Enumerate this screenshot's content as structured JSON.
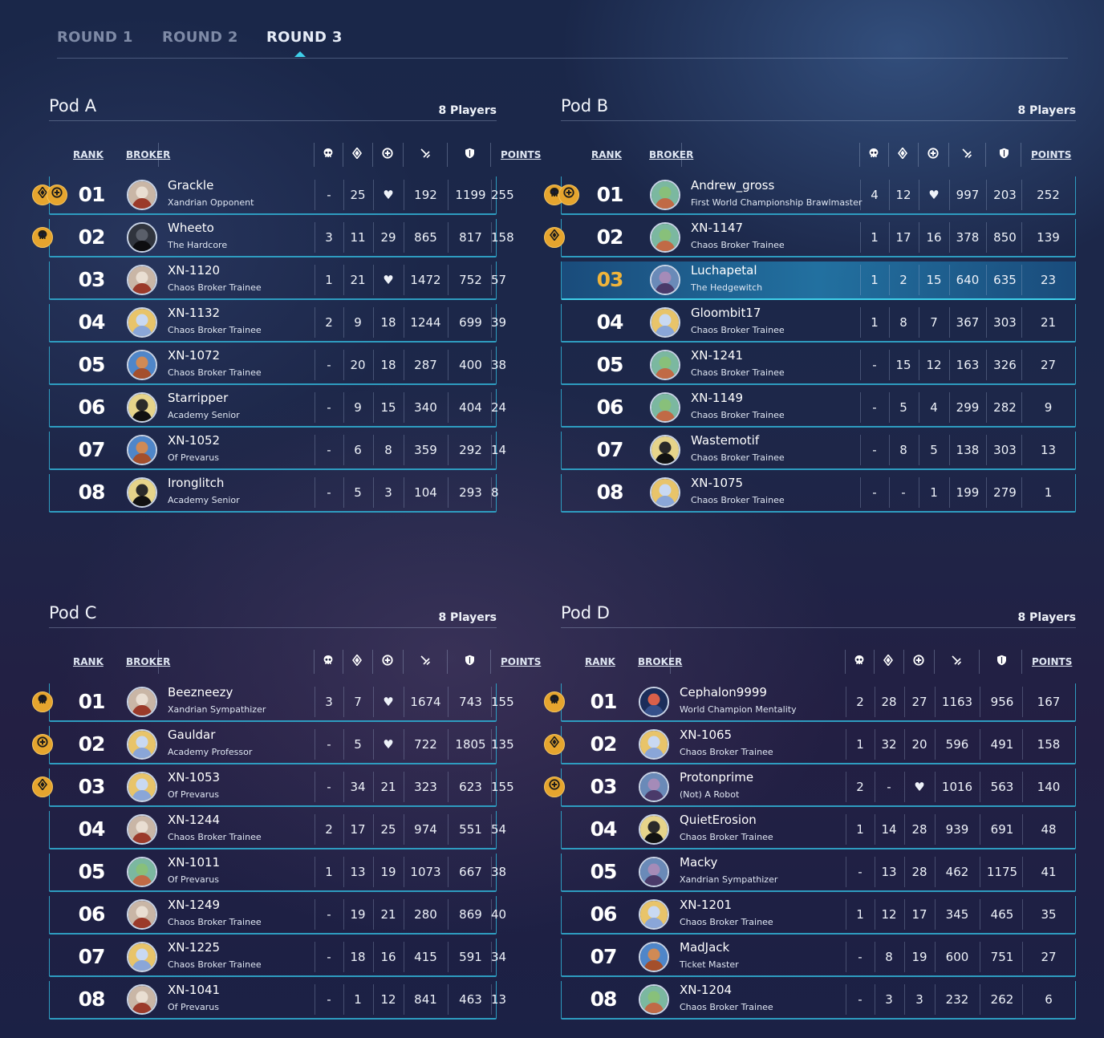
{
  "tabs": [
    "ROUND 1",
    "ROUND 2",
    "ROUND 3"
  ],
  "active_tab": "ROUND 3",
  "columns": {
    "rank": "RANK",
    "broker": "BROKER",
    "points": "POINTS",
    "stat_icons": [
      "skull-icon",
      "diamond-icon",
      "plus-circle-icon",
      "sword-icon",
      "shield-icon"
    ]
  },
  "colors": {
    "accent": "#3fd0ea",
    "row_border": "#2e9cc0",
    "badge": "#e6a52e",
    "highlight_rank": "#f0b43a"
  },
  "pods": [
    {
      "title": "Pod A",
      "count": "8 Players",
      "players": [
        {
          "rank": "01",
          "name": "Grackle",
          "title": "Xandrian Opponent",
          "badges": [
            "diamond-icon",
            "plus-circle-icon"
          ],
          "avatar": "red",
          "s1": "-",
          "s2": "25",
          "s3": "♥",
          "s4": "192",
          "s5": "1199",
          "points": "255"
        },
        {
          "rank": "02",
          "name": "Wheeto",
          "title": "The Hardcore",
          "badges": [
            "skull-icon"
          ],
          "avatar": "dark",
          "s1": "3",
          "s2": "11",
          "s3": "29",
          "s4": "865",
          "s5": "817",
          "points": "158"
        },
        {
          "rank": "03",
          "name": "XN-1120",
          "title": "Chaos Broker Trainee",
          "badges": [],
          "avatar": "red",
          "s1": "1",
          "s2": "21",
          "s3": "♥",
          "s4": "1472",
          "s5": "752",
          "points": "57"
        },
        {
          "rank": "04",
          "name": "XN-1132",
          "title": "Chaos Broker Trainee",
          "badges": [],
          "avatar": "blue",
          "s1": "2",
          "s2": "9",
          "s3": "18",
          "s4": "1244",
          "s5": "699",
          "points": "39"
        },
        {
          "rank": "05",
          "name": "XN-1072",
          "title": "Chaos Broker Trainee",
          "badges": [],
          "avatar": "brown",
          "s1": "-",
          "s2": "20",
          "s3": "18",
          "s4": "287",
          "s5": "400",
          "points": "38"
        },
        {
          "rank": "06",
          "name": "Starripper",
          "title": "Academy Senior",
          "badges": [],
          "avatar": "shadow",
          "s1": "-",
          "s2": "9",
          "s3": "15",
          "s4": "340",
          "s5": "404",
          "points": "24"
        },
        {
          "rank": "07",
          "name": "XN-1052",
          "title": "Of Prevarus",
          "badges": [],
          "avatar": "brown",
          "s1": "-",
          "s2": "6",
          "s3": "8",
          "s4": "359",
          "s5": "292",
          "points": "14"
        },
        {
          "rank": "08",
          "name": "Ironglitch",
          "title": "Academy Senior",
          "badges": [],
          "avatar": "shadow",
          "s1": "-",
          "s2": "5",
          "s3": "3",
          "s4": "104",
          "s5": "293",
          "points": "8"
        }
      ]
    },
    {
      "title": "Pod B",
      "count": "8 Players",
      "players": [
        {
          "rank": "01",
          "name": "Andrew_gross",
          "title": "First World Championship Brawlmaster",
          "badges": [
            "skull-icon",
            "plus-circle-icon"
          ],
          "avatar": "green",
          "s1": "4",
          "s2": "12",
          "s3": "♥",
          "s4": "997",
          "s5": "203",
          "points": "252"
        },
        {
          "rank": "02",
          "name": "XN-1147",
          "title": "Chaos Broker Trainee",
          "badges": [
            "diamond-icon"
          ],
          "avatar": "green",
          "s1": "1",
          "s2": "17",
          "s3": "16",
          "s4": "378",
          "s5": "850",
          "points": "139"
        },
        {
          "rank": "03",
          "name": "Luchapetal",
          "title": "The Hedgewitch",
          "badges": [],
          "avatar": "purple",
          "highlight": true,
          "s1": "1",
          "s2": "2",
          "s3": "15",
          "s4": "640",
          "s5": "635",
          "points": "23"
        },
        {
          "rank": "04",
          "name": "Gloombit17",
          "title": "Chaos Broker Trainee",
          "badges": [],
          "avatar": "blue",
          "s1": "1",
          "s2": "8",
          "s3": "7",
          "s4": "367",
          "s5": "303",
          "points": "21"
        },
        {
          "rank": "05",
          "name": "XN-1241",
          "title": "Chaos Broker Trainee",
          "badges": [],
          "avatar": "green",
          "s1": "-",
          "s2": "15",
          "s3": "12",
          "s4": "163",
          "s5": "326",
          "points": "27"
        },
        {
          "rank": "06",
          "name": "XN-1149",
          "title": "Chaos Broker Trainee",
          "badges": [],
          "avatar": "green",
          "s1": "-",
          "s2": "5",
          "s3": "4",
          "s4": "299",
          "s5": "282",
          "points": "9"
        },
        {
          "rank": "07",
          "name": "Wastemotif",
          "title": "Chaos Broker Trainee",
          "badges": [],
          "avatar": "shadow",
          "s1": "-",
          "s2": "8",
          "s3": "5",
          "s4": "138",
          "s5": "303",
          "points": "13"
        },
        {
          "rank": "08",
          "name": "XN-1075",
          "title": "Chaos Broker Trainee",
          "badges": [],
          "avatar": "blue",
          "s1": "-",
          "s2": "-",
          "s3": "1",
          "s4": "199",
          "s5": "279",
          "points": "1"
        }
      ]
    },
    {
      "title": "Pod C",
      "count": "8 Players",
      "players": [
        {
          "rank": "01",
          "name": "Beezneezy",
          "title": "Xandrian Sympathizer",
          "badges": [
            "skull-icon"
          ],
          "avatar": "red",
          "s1": "3",
          "s2": "7",
          "s3": "♥",
          "s4": "1674",
          "s5": "743",
          "points": "155"
        },
        {
          "rank": "02",
          "name": "Gauldar",
          "title": "Academy Professor",
          "badges": [
            "plus-circle-icon"
          ],
          "avatar": "blue",
          "s1": "-",
          "s2": "5",
          "s3": "♥",
          "s4": "722",
          "s5": "1805",
          "points": "135"
        },
        {
          "rank": "03",
          "name": "XN-1053",
          "title": "Of Prevarus",
          "badges": [
            "diamond-icon"
          ],
          "avatar": "blue",
          "s1": "-",
          "s2": "34",
          "s3": "21",
          "s4": "323",
          "s5": "623",
          "points": "155"
        },
        {
          "rank": "04",
          "name": "XN-1244",
          "title": "Chaos Broker Trainee",
          "badges": [],
          "avatar": "red",
          "s1": "2",
          "s2": "17",
          "s3": "25",
          "s4": "974",
          "s5": "551",
          "points": "54"
        },
        {
          "rank": "05",
          "name": "XN-1011",
          "title": "Of Prevarus",
          "badges": [],
          "avatar": "green",
          "s1": "1",
          "s2": "13",
          "s3": "19",
          "s4": "1073",
          "s5": "667",
          "points": "38"
        },
        {
          "rank": "06",
          "name": "XN-1249",
          "title": "Chaos Broker Trainee",
          "badges": [],
          "avatar": "red",
          "s1": "-",
          "s2": "19",
          "s3": "21",
          "s4": "280",
          "s5": "869",
          "points": "40"
        },
        {
          "rank": "07",
          "name": "XN-1225",
          "title": "Chaos Broker Trainee",
          "badges": [],
          "avatar": "blue",
          "s1": "-",
          "s2": "18",
          "s3": "16",
          "s4": "415",
          "s5": "591",
          "points": "34"
        },
        {
          "rank": "08",
          "name": "XN-1041",
          "title": "Of Prevarus",
          "badges": [],
          "avatar": "red",
          "s1": "-",
          "s2": "1",
          "s3": "12",
          "s4": "841",
          "s5": "463",
          "points": "13"
        }
      ]
    },
    {
      "title": "Pod D",
      "count": "8 Players",
      "players": [
        {
          "rank": "01",
          "name": "Cephalon9999",
          "title": "World Champion Mentality",
          "badges": [
            "skull-icon"
          ],
          "avatar": "castle",
          "s1": "2",
          "s2": "28",
          "s3": "27",
          "s4": "1163",
          "s5": "956",
          "points": "167"
        },
        {
          "rank": "02",
          "name": "XN-1065",
          "title": "Chaos Broker Trainee",
          "badges": [
            "diamond-icon"
          ],
          "avatar": "blue",
          "s1": "1",
          "s2": "32",
          "s3": "20",
          "s4": "596",
          "s5": "491",
          "points": "158"
        },
        {
          "rank": "03",
          "name": "Protonprime",
          "title": "(Not) A Robot",
          "badges": [
            "plus-circle-icon"
          ],
          "avatar": "purple",
          "s1": "2",
          "s2": "-",
          "s3": "♥",
          "s4": "1016",
          "s5": "563",
          "points": "140"
        },
        {
          "rank": "04",
          "name": "QuietErosion",
          "title": "Chaos Broker Trainee",
          "badges": [],
          "avatar": "shadow",
          "s1": "1",
          "s2": "14",
          "s3": "28",
          "s4": "939",
          "s5": "691",
          "points": "48"
        },
        {
          "rank": "05",
          "name": "Macky",
          "title": "Xandrian Sympathizer",
          "badges": [],
          "avatar": "purple",
          "s1": "-",
          "s2": "13",
          "s3": "28",
          "s4": "462",
          "s5": "1175",
          "points": "41"
        },
        {
          "rank": "06",
          "name": "XN-1201",
          "title": "Chaos Broker Trainee",
          "badges": [],
          "avatar": "blue",
          "s1": "1",
          "s2": "12",
          "s3": "17",
          "s4": "345",
          "s5": "465",
          "points": "35"
        },
        {
          "rank": "07",
          "name": "MadJack",
          "title": "Ticket Master",
          "badges": [],
          "avatar": "brown",
          "s1": "-",
          "s2": "8",
          "s3": "19",
          "s4": "600",
          "s5": "751",
          "points": "27"
        },
        {
          "rank": "08",
          "name": "XN-1204",
          "title": "Chaos Broker Trainee",
          "badges": [],
          "avatar": "green",
          "s1": "-",
          "s2": "3",
          "s3": "3",
          "s4": "232",
          "s5": "262",
          "points": "6"
        }
      ]
    }
  ]
}
